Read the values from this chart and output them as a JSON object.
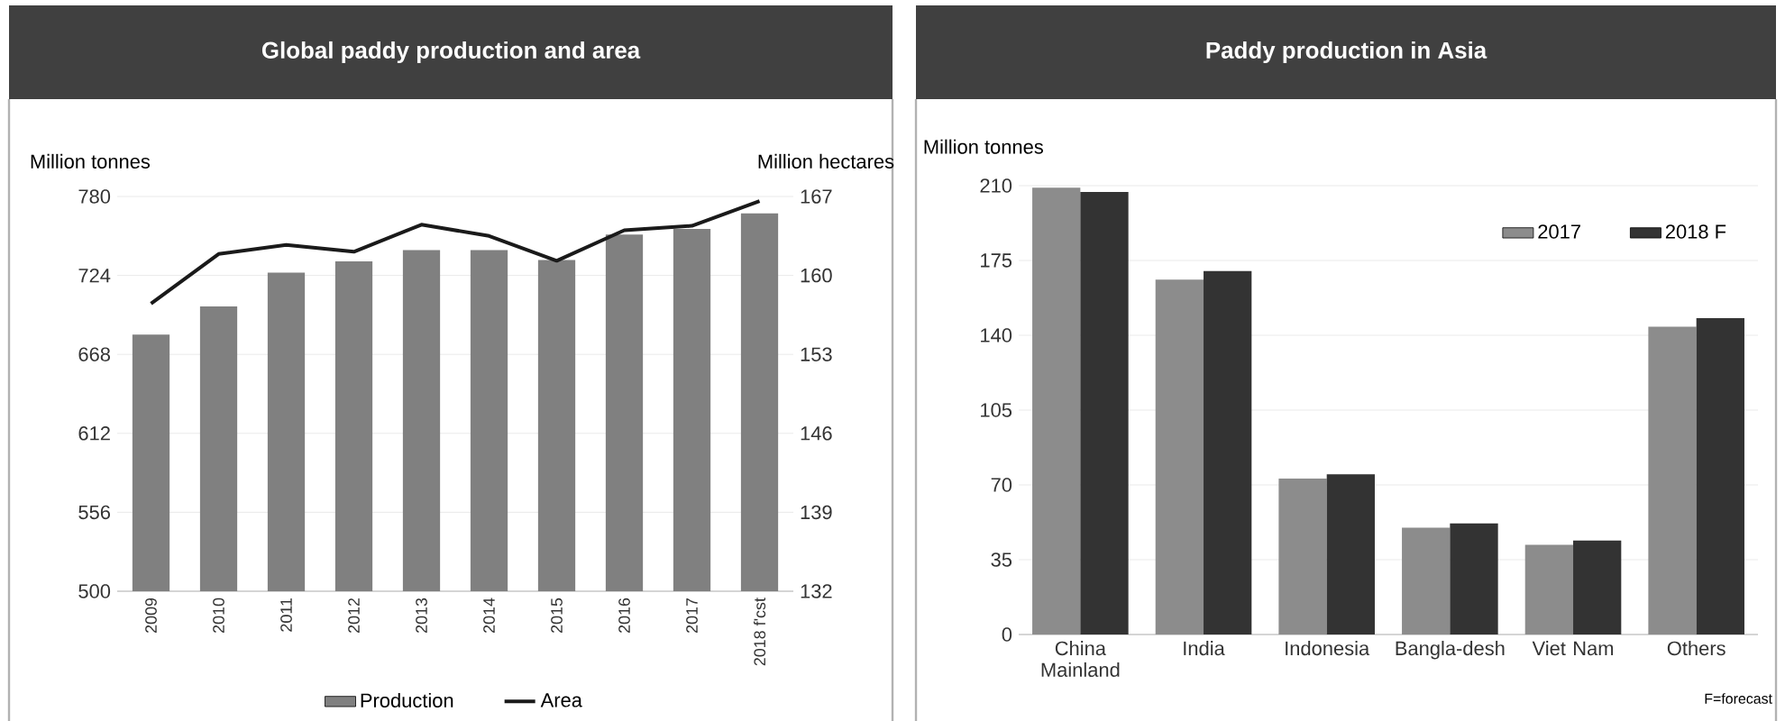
{
  "chart_data": [
    {
      "type": "bar",
      "title": "Global paddy production and area",
      "ylabel": "Million tonnes",
      "y2label": "Million hectares",
      "categories": [
        "2009",
        "2010",
        "2011",
        "2012",
        "2013",
        "2014",
        "2015",
        "2016",
        "2017",
        "2018 f'cst"
      ],
      "series": [
        {
          "name": "Production",
          "type": "bar",
          "color": "#808080",
          "values": [
            682,
            702,
            726,
            734,
            742,
            742,
            735,
            753,
            757,
            768
          ]
        },
        {
          "name": "Area",
          "type": "line",
          "axis": "y2",
          "color": "#1a1a1a",
          "values": [
            157.5,
            161.9,
            162.7,
            162.1,
            164.5,
            163.5,
            161.3,
            164.0,
            164.4,
            166.6
          ]
        }
      ],
      "ylim": [
        500,
        780
      ],
      "yticks": [
        500,
        556,
        612,
        668,
        724,
        780
      ],
      "y2lim": [
        132,
        167
      ],
      "y2ticks": [
        132,
        139,
        146,
        153,
        160,
        167
      ],
      "grid": "y",
      "legend": "bottom",
      "marker": "none"
    },
    {
      "type": "bar",
      "title": "Paddy production in Asia",
      "ylabel": "Million tonnes",
      "categories": [
        "China Mainland",
        "India",
        "Indonesia",
        "Bangla-desh",
        "Viet Nam",
        "Others"
      ],
      "series": [
        {
          "name": "2017",
          "color": "#8c8c8c",
          "values": [
            209,
            166,
            73,
            50,
            42,
            144
          ]
        },
        {
          "name": "2018 F",
          "color": "#333333",
          "values": [
            207,
            170,
            75,
            52,
            44,
            148
          ]
        }
      ],
      "ylim": [
        0,
        210
      ],
      "yticks": [
        0,
        35,
        70,
        105,
        140,
        175,
        210
      ],
      "grid": "y",
      "legend": "top right",
      "annotations": [
        "F=forecast"
      ]
    }
  ]
}
